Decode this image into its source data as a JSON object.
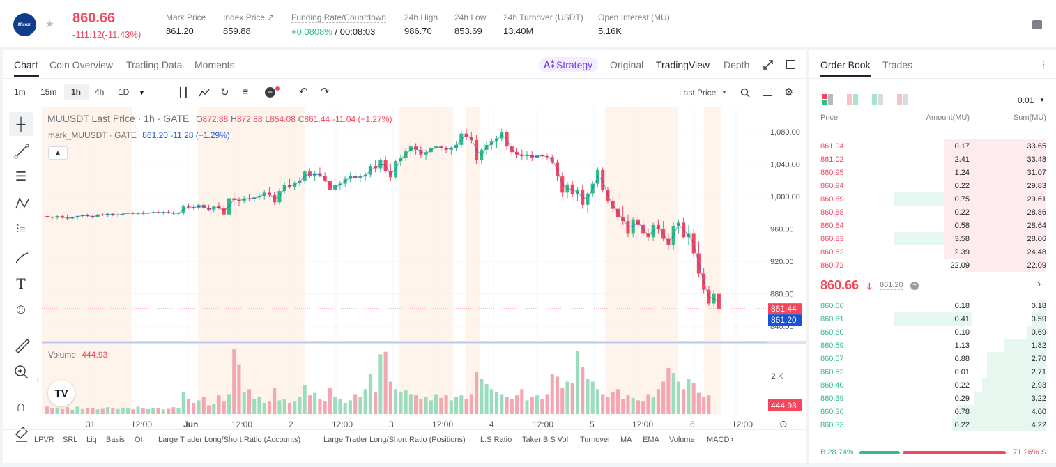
{
  "symbol": {
    "logo_text": "Micron",
    "price": "860.66",
    "change": "-111.12(-11.43%)"
  },
  "stats": [
    {
      "label": "Mark Price",
      "value": "861.20"
    },
    {
      "label": "Index Price ↗",
      "value": "859.88"
    },
    {
      "label": "Funding Rate/Countdown",
      "rate": "+0.0808%",
      "countdown": " / 00:08:03"
    },
    {
      "label": "24h High",
      "value": "986.70"
    },
    {
      "label": "24h Low",
      "value": "853.69"
    },
    {
      "label": "24h Turnover (USDT)",
      "value": "13.40M"
    },
    {
      "label": "Open Interest (MU)",
      "value": "5.16K"
    }
  ],
  "chart_tabs": [
    "Chart",
    "Coin Overview",
    "Trading Data",
    "Moments"
  ],
  "view_tabs": {
    "strategy": "Strategy",
    "original": "Original",
    "tradingview": "TradingView",
    "depth": "Depth"
  },
  "intervals": [
    "1m",
    "15m",
    "1h",
    "4h",
    "1D"
  ],
  "last_price_select": "Last Price",
  "legend": {
    "title": "MUUSDT Last Price · 1h · GATE",
    "o_lbl": "O",
    "o": "872.88",
    "h_lbl": "H",
    "h": "872.88",
    "l_lbl": "L",
    "l": "854.08",
    "c_lbl": "C",
    "c": "861.44",
    "chg": "-11.04 (−1.27%)",
    "mark_lbl": "mark_MUUSDT · GATE",
    "mark_val": "861.20",
    "mark_chg": "-11.28 (−1.29%)"
  },
  "price_axis": [
    "1,080.00",
    "1,040.00",
    "1,000.00",
    "960.00",
    "920.00",
    "880.00",
    "840.00"
  ],
  "price_tags": {
    "last": "861.44",
    "mark": "861.20"
  },
  "volume": {
    "label": "Volume",
    "value": "444.93",
    "axis": "2 K",
    "tag": "444.93"
  },
  "time_axis": [
    "31",
    "12:00",
    "Jun",
    "12:00",
    "2",
    "12:00",
    "3",
    "12:00",
    "4",
    "12:00",
    "5",
    "12:00",
    "6",
    "12:00"
  ],
  "indicators": [
    "LPVR",
    "SRL",
    "Liq",
    "Basis",
    "OI",
    "Large Trader Long/Short Ratio (Accounts)",
    "Large Trader Long/Short Ratio (Positions)",
    "L.S Ratio",
    "Taker B.S Vol.",
    "Turnover",
    "MA",
    "EMA",
    "Volume",
    "MACD"
  ],
  "book_tabs": [
    "Order Book",
    "Trades"
  ],
  "precision": "0.01",
  "book_headers": {
    "price": "Price",
    "amount": "Amount(MU)",
    "sum": "Sum(MU)"
  },
  "asks": [
    {
      "price": "861.04",
      "amount": "0.17",
      "sum": "33.65",
      "depth": 0.415
    },
    {
      "price": "861.02",
      "amount": "2.41",
      "sum": "33.48",
      "depth": 0.415
    },
    {
      "price": "860.95",
      "amount": "1.24",
      "sum": "31.07",
      "depth": 0.415
    },
    {
      "price": "860.94",
      "amount": "0.22",
      "sum": "29.83",
      "depth": 0.415
    },
    {
      "price": "860.89",
      "amount": "0.75",
      "sum": "29.61",
      "depth": 0.415
    },
    {
      "price": "860.88",
      "amount": "0.22",
      "sum": "28.86",
      "depth": 0.415
    },
    {
      "price": "860.84",
      "amount": "0.58",
      "sum": "28.64",
      "depth": 0.415
    },
    {
      "price": "860.83",
      "amount": "3.58",
      "sum": "28.06",
      "depth": 0.415
    },
    {
      "price": "860.82",
      "amount": "2.39",
      "sum": "24.48",
      "depth": 0.415
    },
    {
      "price": "860.72",
      "amount": "22.09",
      "sum": "22.09",
      "depth": 0.33
    }
  ],
  "mid": {
    "price": "860.66",
    "mark": "861.20"
  },
  "bids": [
    {
      "price": "860.66",
      "amount": "0.18",
      "sum": "0.18",
      "depth": 0.03
    },
    {
      "price": "860.61",
      "amount": "0.41",
      "sum": "0.59",
      "depth": 0.06
    },
    {
      "price": "860.60",
      "amount": "0.10",
      "sum": "0.69",
      "depth": 0.08
    },
    {
      "price": "860.59",
      "amount": "1.13",
      "sum": "1.82",
      "depth": 0.17
    },
    {
      "price": "860.57",
      "amount": "0.88",
      "sum": "2.70",
      "depth": 0.24
    },
    {
      "price": "860.52",
      "amount": "0.01",
      "sum": "2.71",
      "depth": 0.24
    },
    {
      "price": "860.40",
      "amount": "0.22",
      "sum": "2.93",
      "depth": 0.26
    },
    {
      "price": "860.39",
      "amount": "0.29",
      "sum": "3.22",
      "depth": 0.29
    },
    {
      "price": "860.36",
      "amount": "0.78",
      "sum": "4.00",
      "depth": 0.36
    },
    {
      "price": "860.33",
      "amount": "0.22",
      "sum": "4.22",
      "depth": 0.38
    }
  ],
  "ratio": {
    "buy_label": "B",
    "buy": "28.74%",
    "sell": "71.26%",
    "sell_label": "S",
    "buy_fraction": 0.2874
  },
  "colors": {
    "up": "#2ebd85",
    "down": "#f6465d",
    "accent": "#1f2329",
    "mark": "#1a52d6"
  },
  "candles": [
    [
      976,
      977,
      973,
      975
    ],
    [
      975,
      976,
      971,
      974
    ],
    [
      974,
      977,
      972,
      976
    ],
    [
      976,
      977,
      973,
      974
    ],
    [
      974,
      978,
      971,
      973
    ],
    [
      973,
      976,
      971,
      975
    ],
    [
      975,
      977,
      972,
      976
    ],
    [
      976,
      978,
      974,
      977
    ],
    [
      977,
      979,
      975,
      976
    ],
    [
      976,
      978,
      973,
      975
    ],
    [
      975,
      979,
      974,
      978
    ],
    [
      978,
      980,
      976,
      977
    ],
    [
      977,
      980,
      975,
      979
    ],
    [
      979,
      980,
      976,
      977
    ],
    [
      977,
      981,
      975,
      978
    ],
    [
      978,
      980,
      976,
      979
    ],
    [
      979,
      982,
      977,
      980
    ],
    [
      980,
      981,
      978,
      979
    ],
    [
      979,
      981,
      977,
      980
    ],
    [
      980,
      982,
      978,
      979
    ],
    [
      979,
      982,
      977,
      980
    ],
    [
      980,
      983,
      978,
      981
    ],
    [
      981,
      983,
      979,
      980
    ],
    [
      980,
      982,
      978,
      981
    ],
    [
      981,
      983,
      979,
      980
    ],
    [
      980,
      982,
      977,
      979
    ],
    [
      979,
      981,
      977,
      980
    ],
    [
      980,
      990,
      978,
      988
    ],
    [
      988,
      992,
      985,
      987
    ],
    [
      987,
      990,
      983,
      986
    ],
    [
      986,
      992,
      984,
      990
    ],
    [
      990,
      993,
      985,
      986
    ],
    [
      986,
      990,
      982,
      984
    ],
    [
      984,
      989,
      981,
      988
    ],
    [
      988,
      993,
      984,
      986
    ],
    [
      986,
      990,
      976,
      978
    ],
    [
      978,
      1000,
      976,
      998
    ],
    [
      998,
      1005,
      990,
      996
    ],
    [
      996,
      999,
      988,
      995
    ],
    [
      995,
      1001,
      992,
      998
    ],
    [
      998,
      1003,
      994,
      997
    ],
    [
      997,
      1001,
      993,
      999
    ],
    [
      999,
      1004,
      996,
      1001
    ],
    [
      1001,
      1008,
      996,
      1005
    ],
    [
      1005,
      1012,
      1000,
      1002
    ],
    [
      1002,
      1006,
      990,
      993
    ],
    [
      993,
      1010,
      990,
      1007
    ],
    [
      1007,
      1018,
      1004,
      1014
    ],
    [
      1014,
      1022,
      1010,
      1012
    ],
    [
      1012,
      1020,
      1008,
      1017
    ],
    [
      1017,
      1024,
      1013,
      1020
    ],
    [
      1020,
      1033,
      1016,
      1031
    ],
    [
      1031,
      1035,
      1023,
      1025
    ],
    [
      1025,
      1032,
      1020,
      1029
    ],
    [
      1029,
      1036,
      1024,
      1026
    ],
    [
      1026,
      1030,
      1018,
      1020
    ],
    [
      1020,
      1024,
      1005,
      1008
    ],
    [
      1008,
      1016,
      1005,
      1014
    ],
    [
      1014,
      1020,
      1008,
      1016
    ],
    [
      1016,
      1025,
      1012,
      1022
    ],
    [
      1022,
      1030,
      1018,
      1026
    ],
    [
      1026,
      1032,
      1020,
      1023
    ],
    [
      1023,
      1029,
      1018,
      1025
    ],
    [
      1025,
      1030,
      1020,
      1027
    ],
    [
      1027,
      1040,
      1024,
      1038
    ],
    [
      1038,
      1045,
      1030,
      1035
    ],
    [
      1035,
      1048,
      1030,
      1045
    ],
    [
      1045,
      1050,
      1030,
      1032
    ],
    [
      1032,
      1040,
      1020,
      1024
    ],
    [
      1024,
      1046,
      1022,
      1044
    ],
    [
      1044,
      1052,
      1038,
      1048
    ],
    [
      1048,
      1060,
      1044,
      1056
    ],
    [
      1056,
      1064,
      1050,
      1062
    ],
    [
      1062,
      1066,
      1052,
      1058
    ],
    [
      1058,
      1062,
      1048,
      1052
    ],
    [
      1052,
      1058,
      1045,
      1055
    ],
    [
      1055,
      1062,
      1050,
      1060
    ],
    [
      1060,
      1066,
      1055,
      1062
    ],
    [
      1062,
      1064,
      1056,
      1060
    ],
    [
      1060,
      1063,
      1054,
      1058
    ],
    [
      1058,
      1062,
      1052,
      1060
    ],
    [
      1060,
      1068,
      1056,
      1064
    ],
    [
      1064,
      1082,
      1060,
      1078
    ],
    [
      1078,
      1084,
      1070,
      1074
    ],
    [
      1074,
      1080,
      1066,
      1070
    ],
    [
      1070,
      1076,
      1040,
      1045
    ],
    [
      1045,
      1060,
      1040,
      1058
    ],
    [
      1058,
      1068,
      1052,
      1064
    ],
    [
      1064,
      1072,
      1058,
      1068
    ],
    [
      1068,
      1075,
      1060,
      1072
    ],
    [
      1072,
      1084,
      1068,
      1080
    ],
    [
      1080,
      1083,
      1058,
      1062
    ],
    [
      1062,
      1066,
      1050,
      1055
    ],
    [
      1055,
      1060,
      1048,
      1052
    ],
    [
      1052,
      1058,
      1046,
      1050
    ],
    [
      1050,
      1056,
      1045,
      1052
    ],
    [
      1052,
      1056,
      1044,
      1048
    ],
    [
      1048,
      1054,
      1044,
      1051
    ],
    [
      1051,
      1054,
      1046,
      1050
    ],
    [
      1050,
      1053,
      1046,
      1049
    ],
    [
      1049,
      1052,
      1040,
      1042
    ],
    [
      1042,
      1046,
      1020,
      1025
    ],
    [
      1025,
      1030,
      1000,
      1005
    ],
    [
      1005,
      1018,
      998,
      1015
    ],
    [
      1015,
      1020,
      1000,
      1003
    ],
    [
      1003,
      1012,
      995,
      1008
    ],
    [
      1008,
      1015,
      985,
      990
    ],
    [
      990,
      1006,
      980,
      1004
    ],
    [
      1004,
      1020,
      1000,
      1016
    ],
    [
      1016,
      1036,
      1012,
      1033
    ],
    [
      1033,
      1036,
      1005,
      1008
    ],
    [
      1008,
      1012,
      992,
      995
    ],
    [
      995,
      1000,
      980,
      985
    ],
    [
      985,
      990,
      970,
      975
    ],
    [
      975,
      988,
      965,
      970
    ],
    [
      970,
      978,
      950,
      955
    ],
    [
      955,
      975,
      950,
      972
    ],
    [
      972,
      978,
      962,
      965
    ],
    [
      965,
      972,
      950,
      955
    ],
    [
      955,
      960,
      945,
      950
    ],
    [
      950,
      968,
      945,
      965
    ],
    [
      965,
      972,
      955,
      960
    ],
    [
      960,
      970,
      945,
      948
    ],
    [
      948,
      955,
      935,
      940
    ],
    [
      940,
      968,
      935,
      964
    ],
    [
      964,
      972,
      955,
      968
    ],
    [
      968,
      974,
      948,
      950
    ],
    [
      950,
      965,
      940,
      955
    ],
    [
      955,
      960,
      925,
      930
    ],
    [
      930,
      945,
      900,
      905
    ],
    [
      905,
      912,
      880,
      885
    ],
    [
      885,
      890,
      865,
      868
    ],
    [
      868,
      885,
      864,
      880
    ],
    [
      880,
      885,
      856,
      861
    ]
  ],
  "volumes": [
    60,
    45,
    50,
    40,
    55,
    35,
    60,
    40,
    45,
    50,
    38,
    42,
    55,
    48,
    40,
    52,
    46,
    38,
    60,
    44,
    40,
    50,
    45,
    38,
    42,
    55,
    48,
    180,
    120,
    90,
    110,
    140,
    70,
    80,
    150,
    100,
    160,
    520,
    400,
    180,
    200,
    120,
    140,
    90,
    100,
    210,
    110,
    120,
    90,
    100,
    140,
    230,
    150,
    170,
    120,
    100,
    210,
    140,
    120,
    90,
    110,
    160,
    140,
    200,
    320,
    180,
    480,
    500,
    260,
    200,
    180,
    190,
    160,
    150,
    120,
    140,
    110,
    160,
    130,
    150,
    110,
    140,
    150,
    120,
    160,
    340,
    280,
    240,
    200,
    180,
    160,
    140,
    120,
    150,
    200,
    110,
    140,
    150,
    120,
    160,
    320,
    300,
    210,
    260,
    250,
    510,
    380,
    280,
    260,
    200,
    160,
    140,
    180,
    200,
    120,
    150,
    130,
    110,
    100,
    160,
    140,
    200,
    260,
    370,
    330,
    260,
    200,
    280,
    250,
    170,
    140,
    150
  ]
}
